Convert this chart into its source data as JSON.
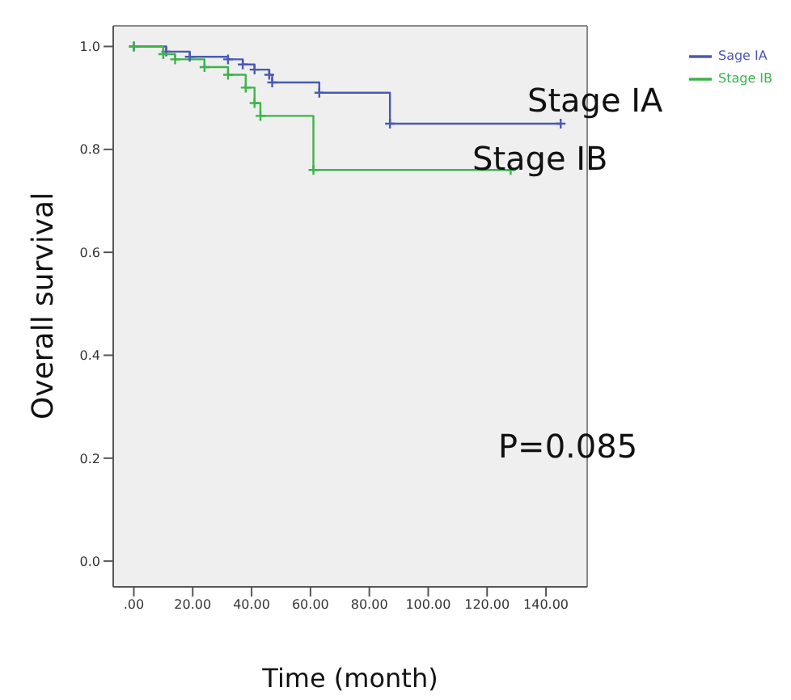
{
  "chart_data": {
    "type": "step",
    "xlabel": "Time (month)",
    "ylabel": "Overall survival",
    "xlim": [
      -7,
      154
    ],
    "ylim": [
      -0.05,
      1.04
    ],
    "xticks": [
      {
        "value": 0,
        "label": ".00"
      },
      {
        "value": 20,
        "label": "20.00"
      },
      {
        "value": 40,
        "label": "40.00"
      },
      {
        "value": 60,
        "label": "60.00"
      },
      {
        "value": 80,
        "label": "80.00"
      },
      {
        "value": 100,
        "label": "100.00"
      },
      {
        "value": 120,
        "label": "120.00"
      },
      {
        "value": 140,
        "label": "140.00"
      }
    ],
    "yticks": [
      {
        "value": 0,
        "label": "0.0"
      },
      {
        "value": 0.2,
        "label": "0.2"
      },
      {
        "value": 0.4,
        "label": "0.4"
      },
      {
        "value": 0.6,
        "label": "0.6"
      },
      {
        "value": 0.8,
        "label": "0.8"
      },
      {
        "value": 1,
        "label": "1.0"
      }
    ],
    "series": [
      {
        "name": "Sage IA",
        "color": "#4a5ab4",
        "x": [
          0,
          11,
          19,
          32,
          37,
          41,
          46,
          47,
          63,
          87,
          145
        ],
        "values": [
          1,
          0.99,
          0.98,
          0.975,
          0.965,
          0.955,
          0.945,
          0.93,
          0.91,
          0.85,
          0.85
        ]
      },
      {
        "name": "Stage IB",
        "color": "#3cb44a",
        "x": [
          0,
          10,
          14,
          24,
          32,
          38,
          41,
          43,
          61,
          128
        ],
        "values": [
          1,
          0.985,
          0.975,
          0.96,
          0.945,
          0.92,
          0.89,
          0.865,
          0.76,
          0.76
        ]
      }
    ],
    "annotations": [
      "Stage IA",
      "Stage IB",
      "P=0.085"
    ],
    "legend": "top right",
    "marker": "cross",
    "line_style": "solid"
  }
}
